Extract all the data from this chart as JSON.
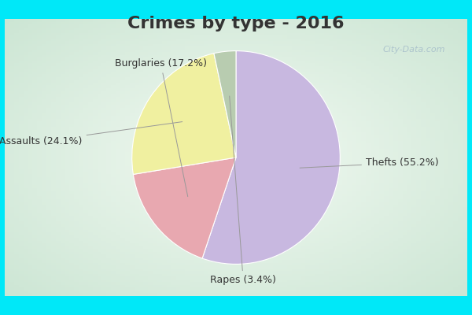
{
  "title": "Crimes by type - 2016",
  "slices": [
    {
      "label": "Thefts (55.2%)",
      "value": 55.2,
      "color": "#c8b8e0"
    },
    {
      "label": "Burglaries (17.2%)",
      "value": 17.2,
      "color": "#e8a8b0"
    },
    {
      "label": "Assaults (24.1%)",
      "value": 24.1,
      "color": "#f0f0a0"
    },
    {
      "label": "Rapes (3.4%)",
      "value": 3.4,
      "color": "#b8ccb0"
    }
  ],
  "bg_outer": "#00e8f8",
  "bg_inner": "#d8ece4",
  "title_fontsize": 16,
  "label_fontsize": 9,
  "watermark": "City-Data.com",
  "startangle": 90
}
